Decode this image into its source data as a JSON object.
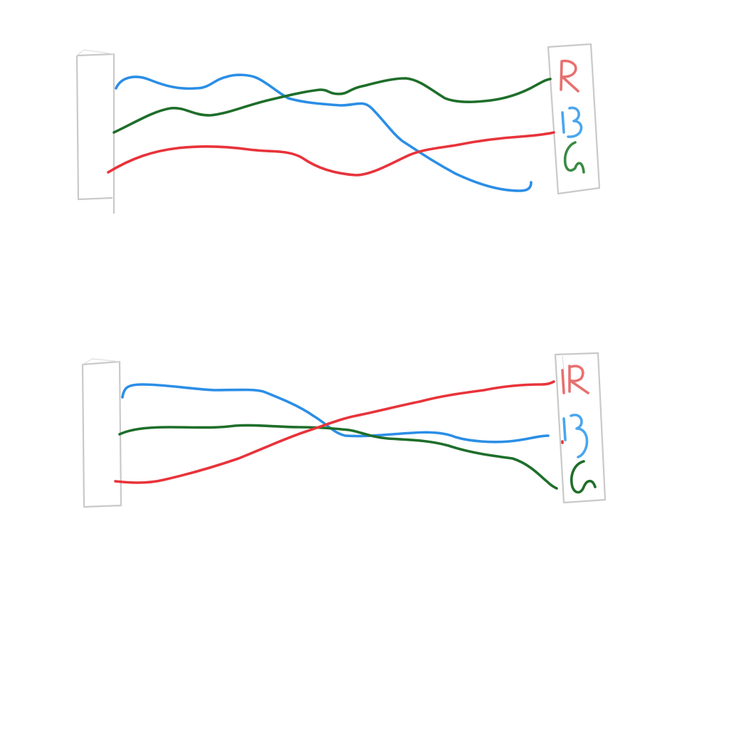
{
  "colors": {
    "red": "#e8333a",
    "blue": "#2b8ee6",
    "green": "#1e6e2a",
    "box": "#c9c9c9"
  },
  "diagrams": [
    {
      "id": "top",
      "labels": [
        {
          "text": "R",
          "color_key": "red"
        },
        {
          "text": "B",
          "color_key": "blue"
        },
        {
          "text": "G",
          "color_key": "green"
        }
      ]
    },
    {
      "id": "bottom",
      "labels": [
        {
          "text": "R",
          "color_key": "red"
        },
        {
          "text": "B",
          "color_key": "blue"
        },
        {
          "text": "G",
          "color_key": "green"
        }
      ]
    }
  ]
}
